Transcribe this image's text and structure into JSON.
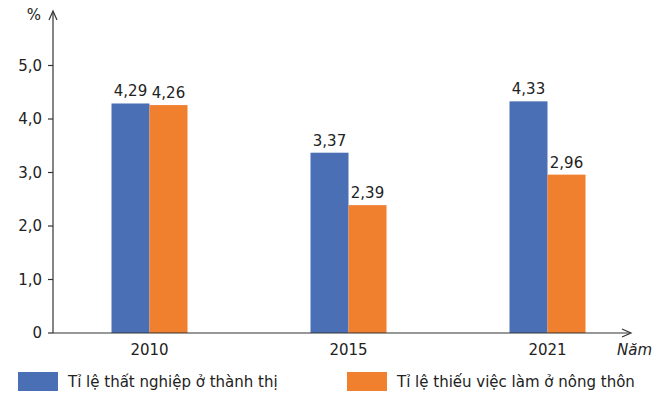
{
  "chart_data": {
    "type": "bar",
    "y_label": "%",
    "x_label": "Năm",
    "categories": [
      "2010",
      "2015",
      "2021"
    ],
    "series": [
      {
        "name": "Tỉ lệ thất nghiệp ở thành thị",
        "color": "#4a6fb5",
        "values": [
          4.29,
          3.37,
          4.33
        ],
        "value_labels": [
          "4,29",
          "3,37",
          "4,33"
        ]
      },
      {
        "name": "Tỉ lệ thiếu việc làm ở nông thôn",
        "color": "#f07f2e",
        "values": [
          4.26,
          2.39,
          2.96
        ],
        "value_labels": [
          "4,26",
          "2,39",
          "2,96"
        ]
      }
    ],
    "ylim": [
      0,
      6
    ],
    "yticks": [
      0,
      {
        "value": 1,
        "label": "1,0"
      },
      {
        "value": 2,
        "label": "2,0"
      },
      {
        "value": 3,
        "label": "3,0"
      },
      {
        "value": 4,
        "label": "4,0"
      },
      {
        "value": 5,
        "label": "5,0"
      }
    ],
    "grid": false,
    "data_labels": true,
    "legend": "bottom"
  }
}
